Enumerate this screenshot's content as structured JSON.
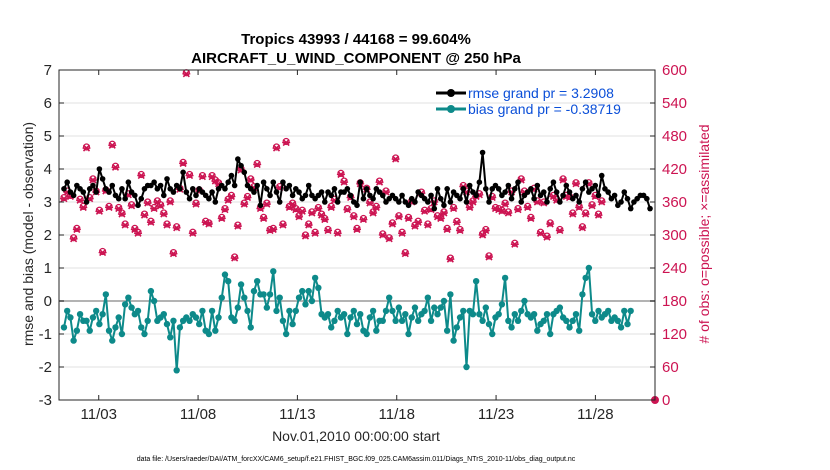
{
  "chart_data": {
    "type": "line",
    "title": "Tropics 43993 / 44168 = 99.604%",
    "subtitle": "AIRCRAFT_U_WIND_COMPONENT @ 250 hPa",
    "xlabel": "Nov.01,2010 00:00:00 start",
    "ylabel": "rmse and bias (model - observation)",
    "ylabel_right": "# of obs: o=possible; ×=assimilated",
    "footer": "data file: /Users/raeder/DAI/ATM_forcXX/CAM6_setup/f.e21.FHIST_BGC.f09_025.CAM6assim.011/Diags_NTrS_2010-11/obs_diag_output.nc",
    "xlim": [
      1,
      31
    ],
    "ylim": [
      -3,
      7
    ],
    "ylim_right": [
      0,
      600
    ],
    "x_ticks": [
      3,
      8,
      13,
      18,
      23,
      28
    ],
    "x_tick_labels": [
      "11/03",
      "11/08",
      "11/13",
      "11/18",
      "11/23",
      "11/28"
    ],
    "y_ticks": [
      -3,
      -2,
      -1,
      0,
      1,
      2,
      3,
      4,
      5,
      6,
      7
    ],
    "y_tick_labels": [
      "-3",
      "-2",
      "-1",
      "0",
      "1",
      "2",
      "3",
      "4",
      "5",
      "6",
      "7"
    ],
    "y_right_ticks": [
      0,
      60,
      120,
      180,
      240,
      300,
      360,
      420,
      480,
      540,
      600
    ],
    "y_right_tick_labels": [
      "0",
      "60",
      "120",
      "180",
      "240",
      "300",
      "360",
      "420",
      "480",
      "540",
      "600"
    ],
    "zero_line": 0,
    "colors": {
      "rmse": "#000000",
      "bias": "#0d8a8a",
      "obs": "#cc1452",
      "zero": "#b3b3b3",
      "legend_text": "#0b4fd8",
      "grid": "#e0e0e0"
    },
    "series": [
      {
        "name": "rmse grand pr = 3.2908",
        "axis": "left",
        "values": [
          3.4,
          3.6,
          3.3,
          3.2,
          3.5,
          3.4,
          3.3,
          3.0,
          3.4,
          3.5,
          3.3,
          4.0,
          3.7,
          3.4,
          3.3,
          3.5,
          3.2,
          3.1,
          3.4,
          3.1,
          3.6,
          3.3,
          3.2,
          2.9,
          3.1,
          3.4,
          3.5,
          3.5,
          3.6,
          3.4,
          3.5,
          3.2,
          3.7,
          3.4,
          3.3,
          3.5,
          3.4,
          3.9,
          3.3,
          3.1,
          3.4,
          3.2,
          3.4,
          3.3,
          3.2,
          3.1,
          3.3,
          3.0,
          3.4,
          3.5,
          3.4,
          3.6,
          3.8,
          3.5,
          4.3,
          4.1,
          3.9,
          3.5,
          3.4,
          3.3,
          3.5,
          2.9,
          3.6,
          3.4,
          3.2,
          3.6,
          3.3,
          3.0,
          3.6,
          3.4,
          3.5,
          3.2,
          3.4,
          3.3,
          3.1,
          3.2,
          3.5,
          3.2,
          3.1,
          3.2,
          3.3,
          3.0,
          3.3,
          3.2,
          3.4,
          3.0,
          3.3,
          3.3,
          3.4,
          3.2,
          3.0,
          2.9,
          3.6,
          3.1,
          3.4,
          3.2,
          3.1,
          3.4,
          3.3,
          3.2,
          3.0,
          3.1,
          3.2,
          3.1,
          3.0,
          3.2,
          3.0,
          2.9,
          3.1,
          3.0,
          3.3,
          3.2,
          3.1,
          3.0,
          3.2,
          2.8,
          3.4,
          3.1,
          2.9,
          3.4,
          3.0,
          3.3,
          3.2,
          3.1,
          3.4,
          3.0,
          3.5,
          3.3,
          3.2,
          3.6,
          4.5,
          3.4,
          3.0,
          3.4,
          3.5,
          3.4,
          3.2,
          3.3,
          3.5,
          3.1,
          3.4,
          3.6,
          3.0,
          3.2,
          3.3,
          3.4,
          3.1,
          3.5,
          3.2,
          3.3,
          3.0,
          3.4,
          3.6,
          3.3,
          3.0,
          3.2,
          3.5,
          3.3,
          3.1,
          3.2,
          3.0,
          3.4,
          3.6,
          3.3,
          3.4,
          3.5,
          3.2,
          3.8,
          3.4,
          3.3,
          3.1,
          3.2,
          2.9,
          3.0,
          3.3,
          3.1,
          2.8,
          3.0,
          3.1,
          3.2,
          3.2,
          3.1,
          2.8
        ]
      },
      {
        "name": "bias grand pr = -0.38719",
        "axis": "left",
        "values": [
          -0.8,
          -0.3,
          -0.5,
          -1.2,
          -0.9,
          -0.4,
          -0.6,
          -0.6,
          -0.9,
          -0.5,
          -0.3,
          -0.7,
          -0.4,
          0.2,
          -0.9,
          -1.2,
          -0.8,
          -0.5,
          -1.0,
          -0.1,
          0.1,
          -0.2,
          -0.4,
          -0.3,
          -0.8,
          -1.0,
          -0.6,
          0.3,
          0.0,
          -0.6,
          -0.5,
          -0.4,
          -0.7,
          -1.1,
          -0.6,
          -2.1,
          -0.8,
          -0.6,
          -0.5,
          -0.6,
          -0.4,
          -0.5,
          -0.7,
          -0.3,
          -0.9,
          -1.0,
          -0.3,
          -0.9,
          -0.5,
          0.1,
          0.8,
          0.6,
          -0.5,
          -0.6,
          -0.2,
          0.5,
          0.1,
          -0.3,
          -0.8,
          0.3,
          0.6,
          0.2,
          0.2,
          -0.2,
          0.2,
          0.9,
          -0.3,
          0.1,
          -0.6,
          -1.0,
          -0.3,
          -0.7,
          -0.3,
          0.1,
          0.3,
          -0.1,
          0.3,
          0.0,
          0.7,
          0.4,
          -0.4,
          -0.5,
          -0.4,
          -0.8,
          -0.6,
          -0.3,
          -0.5,
          -0.4,
          -1.0,
          -0.5,
          -0.3,
          -0.7,
          -0.4,
          -0.9,
          -1.0,
          -0.5,
          -0.3,
          -0.9,
          -0.6,
          -0.6,
          -0.3,
          0.1,
          -0.3,
          -0.6,
          -0.2,
          -0.6,
          -0.4,
          -1.0,
          -0.5,
          -0.2,
          -0.6,
          -0.4,
          -0.3,
          0.1,
          -0.6,
          -0.2,
          -0.4,
          -0.2,
          0.0,
          -0.9,
          0.2,
          -1.2,
          -0.8,
          -0.5,
          -0.3,
          -2.0,
          -0.3,
          -0.4,
          0.6,
          -0.4,
          -0.6,
          -0.2,
          -0.7,
          -1.0,
          -0.5,
          -0.4,
          -0.1,
          0.7,
          -0.6,
          -0.8,
          -0.4,
          -0.6,
          -0.3,
          0.0,
          -0.4,
          -0.5,
          -0.4,
          -0.9,
          -0.7,
          -0.6,
          -0.4,
          -1.0,
          -0.4,
          -0.3,
          -0.2,
          -0.5,
          -0.6,
          -0.8,
          -0.6,
          -0.4,
          -0.9,
          0.2,
          0.7,
          1.0,
          -0.4,
          -0.6,
          -0.3,
          -0.5,
          -0.4,
          -0.3,
          -0.6,
          -0.5,
          -0.6,
          -0.8,
          -0.3,
          -0.7,
          -0.3
        ]
      },
      {
        "name": "# of obs possible",
        "axis": "right",
        "marker": "o",
        "values": [
          368,
          380,
          372,
          295,
          312,
          365,
          352,
          460,
          368,
          402,
          380,
          345,
          270,
          382,
          352,
          465,
          425,
          350,
          340,
          320,
          375,
          355,
          312,
          305,
          410,
          338,
          360,
          325,
          350,
          362,
          355,
          340,
          320,
          362,
          268,
          315,
          385,
          432,
          595,
          410,
          305,
          358,
          382,
          408,
          325,
          322,
          408,
          400,
          395,
          332,
          348,
          365,
          372,
          260,
          318,
          420,
          358,
          370,
          402,
          388,
          430,
          350,
          332,
          358,
          310,
          312,
          460,
          388,
          320,
          470,
          352,
          358,
          348,
          335,
          345,
          300,
          320,
          342,
          305,
          350,
          338,
          330,
          310,
          352,
          365,
          305,
          412,
          398,
          348,
          370,
          335,
          312,
          395,
          330,
          385,
          360,
          342,
          352,
          398,
          302,
          380,
          295,
          322,
          440,
          335,
          305,
          268,
          332,
          362,
          318,
          325,
          378,
          345,
          320,
          348,
          362,
          335,
          332,
          342,
          312,
          258,
          350,
          325,
          310,
          390,
          380,
          352,
          362,
          372,
          375,
          302,
          310,
          262,
          370,
          350,
          348,
          345,
          358,
          342,
          380,
          285,
          348,
          402,
          380,
          352,
          332,
          385,
          362,
          305,
          360,
          298,
          322,
          372,
          365,
          310,
          402,
          372,
          370,
          340,
          395,
          352,
          315,
          340,
          395,
          355,
          372,
          338,
          362
        ]
      },
      {
        "name": "# of obs assimilated",
        "axis": "right",
        "marker": "x",
        "values": [
          366,
          378,
          370,
          293,
          310,
          363,
          350,
          458,
          366,
          400,
          378,
          343,
          268,
          380,
          350,
          463,
          423,
          348,
          338,
          318,
          373,
          353,
          310,
          303,
          408,
          336,
          358,
          323,
          348,
          360,
          353,
          338,
          318,
          360,
          266,
          313,
          383,
          430,
          593,
          408,
          303,
          356,
          380,
          406,
          323,
          320,
          406,
          398,
          393,
          330,
          346,
          363,
          370,
          258,
          316,
          418,
          356,
          368,
          400,
          386,
          428,
          348,
          330,
          356,
          308,
          310,
          458,
          386,
          318,
          468,
          350,
          356,
          346,
          333,
          343,
          298,
          318,
          340,
          303,
          348,
          336,
          328,
          308,
          350,
          363,
          303,
          410,
          396,
          346,
          368,
          333,
          310,
          393,
          328,
          383,
          358,
          340,
          350,
          396,
          300,
          378,
          293,
          320,
          438,
          333,
          303,
          266,
          330,
          360,
          316,
          323,
          376,
          343,
          318,
          346,
          360,
          333,
          330,
          340,
          310,
          256,
          348,
          323,
          308,
          388,
          378,
          350,
          360,
          370,
          373,
          300,
          308,
          260,
          368,
          348,
          346,
          343,
          356,
          340,
          378,
          283,
          346,
          400,
          378,
          350,
          330,
          383,
          360,
          303,
          358,
          296,
          320,
          370,
          363,
          308,
          400,
          370,
          368,
          338,
          393,
          350,
          313,
          338,
          393,
          353,
          370,
          336,
          360
        ]
      }
    ],
    "extra_points": [
      {
        "x": 31,
        "y_right": 0
      }
    ]
  }
}
